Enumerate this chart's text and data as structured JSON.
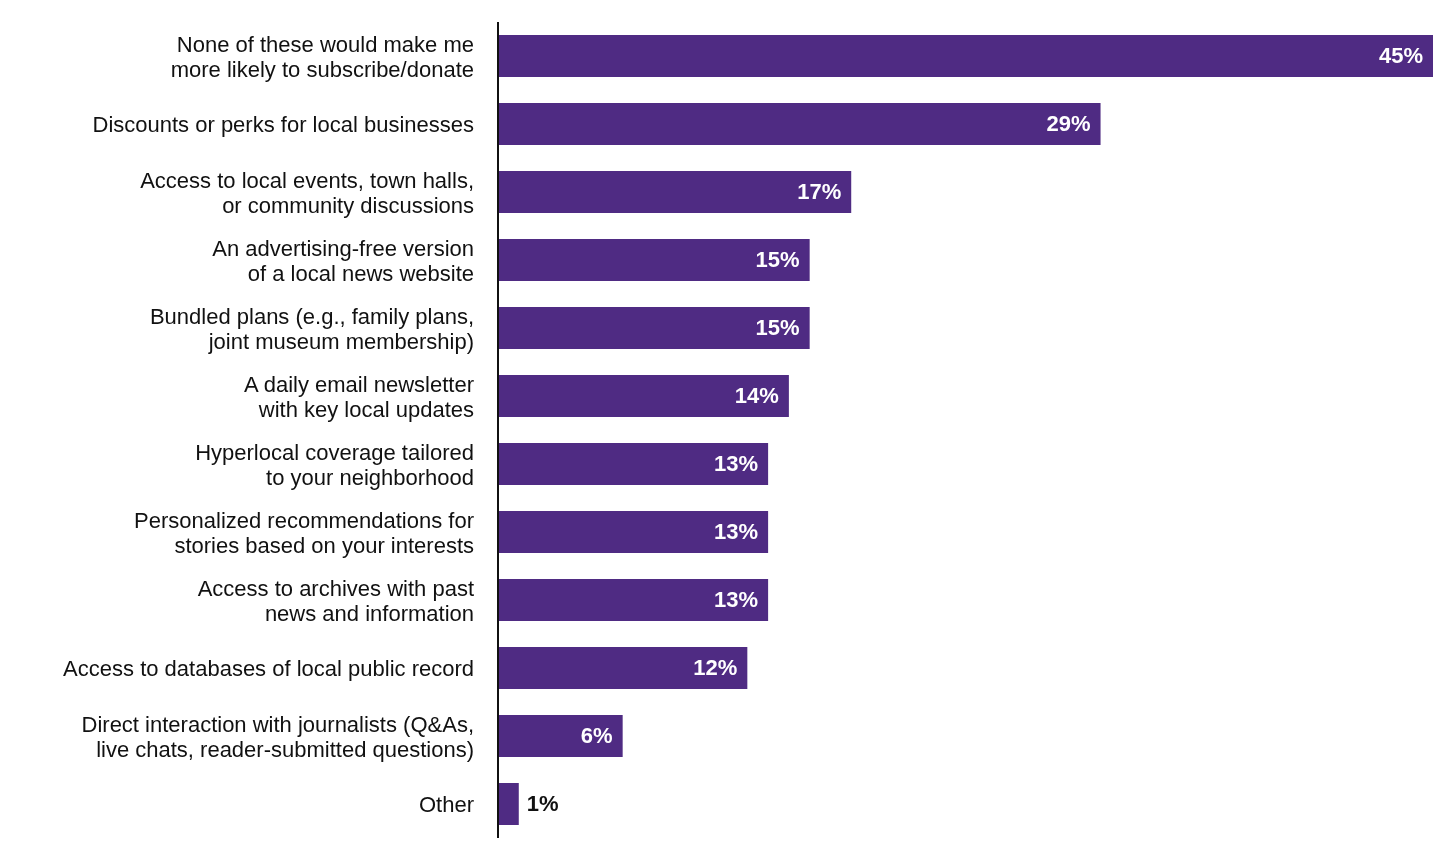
{
  "chart_data": {
    "type": "bar",
    "orientation": "horizontal",
    "categories": [
      "None of these would make me\nmore likely to subscribe/donate",
      "Discounts or perks for local businesses",
      "Access to local events, town halls,\nor community discussions",
      "An advertising-free version\nof a local news website",
      "Bundled plans (e.g., family plans,\njoint museum membership)",
      "A daily email newsletter\nwith key local updates",
      "Hyperlocal coverage tailored\nto your neighborhood",
      "Personalized recommendations for\nstories based on your interests",
      "Access to archives with past\nnews and information",
      "Access to databases of local public record",
      "Direct interaction with journalists (Q&As,\nlive chats, reader-submitted questions)",
      "Other"
    ],
    "values": [
      45,
      29,
      17,
      15,
      15,
      14,
      13,
      13,
      13,
      12,
      6,
      1
    ],
    "value_labels": [
      "45%",
      "29%",
      "17%",
      "15%",
      "15%",
      "14%",
      "13%",
      "13%",
      "13%",
      "12%",
      "6%",
      "1%"
    ],
    "color": "#4f2b83"
  }
}
